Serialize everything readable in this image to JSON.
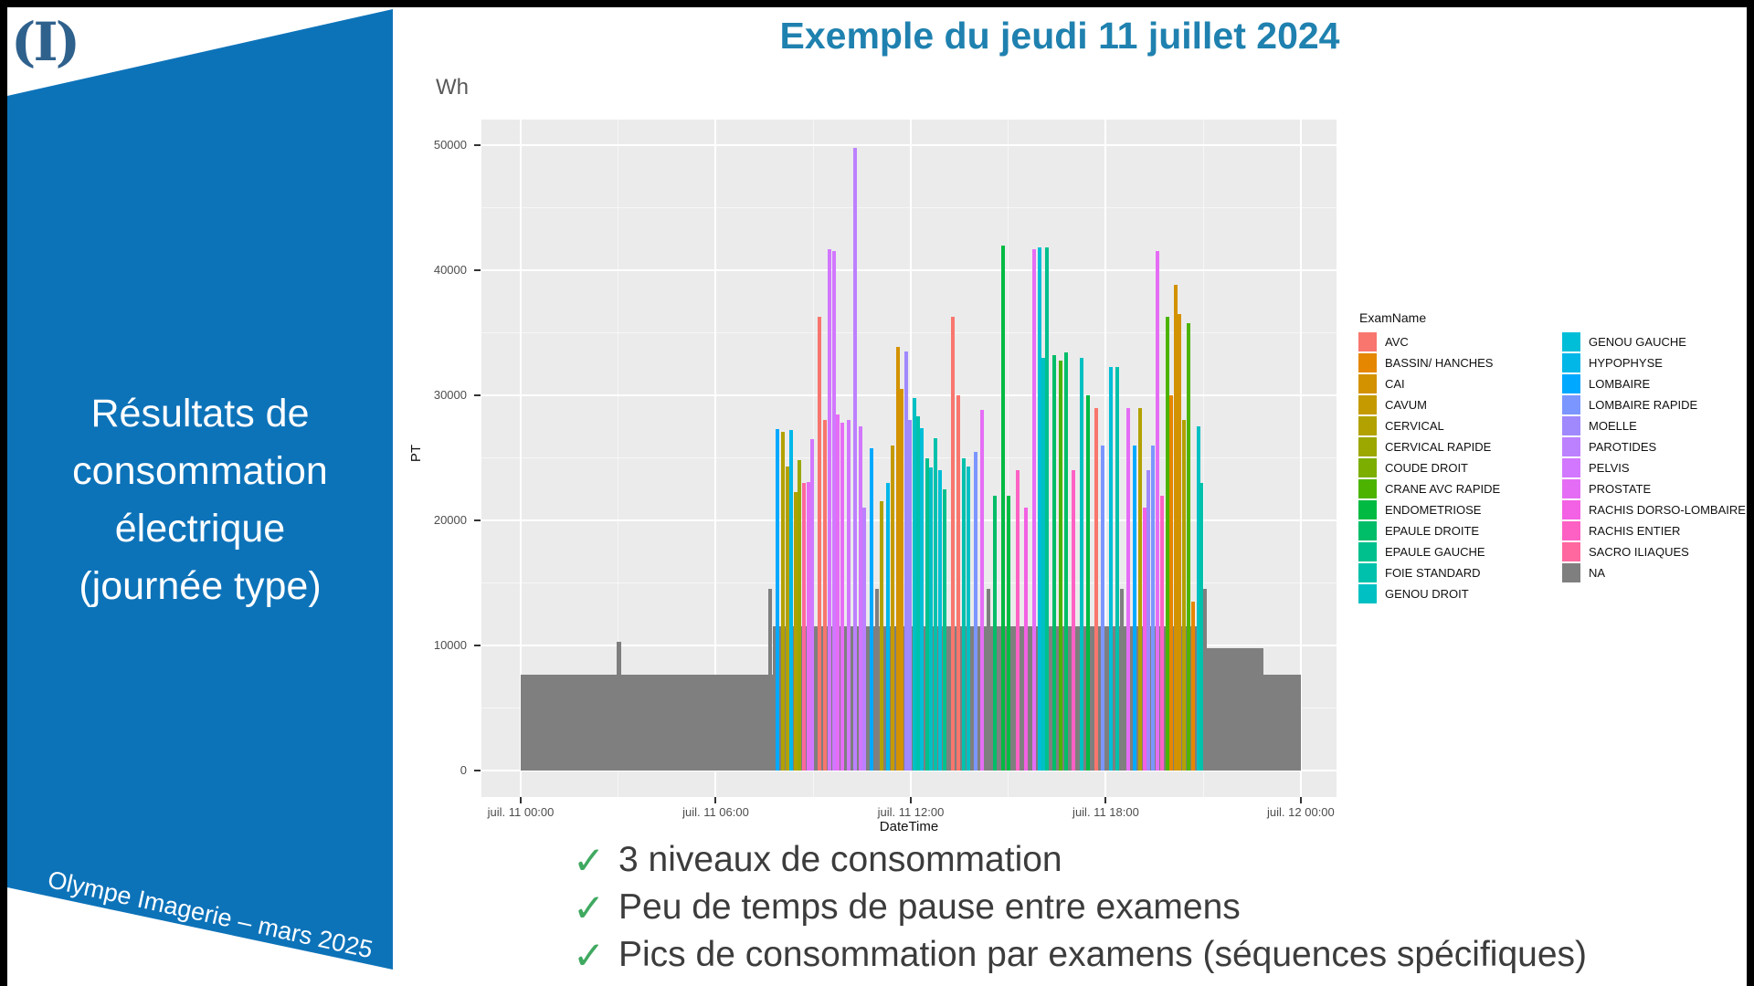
{
  "sidebar": {
    "bg_color": "#0D73B9",
    "logo": "(I)",
    "logo_color": "#2F618D",
    "title_lines": [
      "Résultats de",
      "consommation",
      "électrique",
      "(journée type)"
    ],
    "footer": "Olympe Imagerie – mars 2025"
  },
  "header": {
    "title": "Exemple du jeudi 11 juillet 2024",
    "color": "#1F81AF"
  },
  "bullets": {
    "check": "✓",
    "check_color": "#3FA960",
    "items": [
      "3 niveaux de consommation",
      "Peu de temps de pause entre examens",
      "Pics de consommation par examens (séquences spécifiques)"
    ]
  },
  "chart_data": {
    "type": "bar",
    "unit_label": "Wh",
    "xlabel": "DateTime",
    "ylabel": "PT",
    "panel_bg": "#EBEBEB",
    "ylim": [
      0,
      52000
    ],
    "y_ticks": [
      0,
      10000,
      20000,
      30000,
      40000,
      50000
    ],
    "x_ticks": [
      "juil. 11 00:00",
      "juil. 11 06:00",
      "juil. 11 12:00",
      "juil. 11 18:00",
      "juil. 12 00:00"
    ],
    "x_tick_hours": [
      0,
      6,
      12,
      18,
      24
    ],
    "grid": true,
    "legend_position": "right",
    "legend_title": "ExamName",
    "legend_col1": [
      {
        "label": "AVC",
        "color": "#F8766D"
      },
      {
        "label": "BASSIN/ HANCHES",
        "color": "#E58700"
      },
      {
        "label": "CAI",
        "color": "#D39200"
      },
      {
        "label": "CAVUM",
        "color": "#C49A00"
      },
      {
        "label": "CERVICAL",
        "color": "#B2A100"
      },
      {
        "label": "CERVICAL RAPIDE",
        "color": "#9CA700"
      },
      {
        "label": "COUDE DROIT",
        "color": "#7CAE00"
      },
      {
        "label": "CRANE AVC RAPIDE",
        "color": "#4CB400"
      },
      {
        "label": "ENDOMETRIOSE",
        "color": "#00BA42"
      },
      {
        "label": "EPAULE DROITE",
        "color": "#00BD68"
      },
      {
        "label": "EPAULE GAUCHE",
        "color": "#00C08D"
      },
      {
        "label": "FOIE STANDARD",
        "color": "#00C1AB"
      },
      {
        "label": "GENOU DROIT",
        "color": "#00C0C3"
      }
    ],
    "legend_col2": [
      {
        "label": "GENOU GAUCHE",
        "color": "#00BED8"
      },
      {
        "label": "HYPOPHYSE",
        "color": "#00B7E8"
      },
      {
        "label": "LOMBAIRE",
        "color": "#00A9FF"
      },
      {
        "label": "LOMBAIRE RAPIDE",
        "color": "#7C96FF"
      },
      {
        "label": "MOELLE",
        "color": "#A088FD"
      },
      {
        "label": "PAROTIDES",
        "color": "#BC81FF"
      },
      {
        "label": "PELVIS",
        "color": "#D277FF"
      },
      {
        "label": "PROSTATE",
        "color": "#E56DF5"
      },
      {
        "label": "RACHIS DORSO-LOMBAIRE",
        "color": "#F361E4"
      },
      {
        "label": "RACHIS ENTIER",
        "color": "#FD61C4"
      },
      {
        "label": "SACRO ILIAQUES",
        "color": "#FF689E"
      },
      {
        "label": "NA",
        "color": "#7F7F7F"
      }
    ],
    "baseline_exam": "NA",
    "baseline_segments": [
      {
        "start_h": 0.0,
        "end_h": 7.75,
        "wh": 7700
      },
      {
        "start_h": 2.95,
        "end_h": 3.1,
        "wh": 10300
      },
      {
        "start_h": 7.75,
        "end_h": 21.0,
        "wh": 11500
      },
      {
        "start_h": 21.0,
        "end_h": 22.85,
        "wh": 9800
      },
      {
        "start_h": 22.85,
        "end_h": 24.0,
        "wh": 7700
      }
    ],
    "bars": [
      {
        "h": 7.68,
        "wh": 14500,
        "exam": "NA"
      },
      {
        "h": 7.9,
        "wh": 27300,
        "exam": "LOMBAIRE"
      },
      {
        "h": 8.08,
        "wh": 27100,
        "exam": "CERVICAL"
      },
      {
        "h": 8.2,
        "wh": 24300,
        "exam": "CERVICAL"
      },
      {
        "h": 8.32,
        "wh": 27200,
        "exam": "HYPOPHYSE"
      },
      {
        "h": 8.45,
        "wh": 22300,
        "exam": "CERVICAL"
      },
      {
        "h": 8.57,
        "wh": 24800,
        "exam": "CERVICAL RAPIDE"
      },
      {
        "h": 8.72,
        "wh": 23000,
        "exam": "SACRO ILIAQUES"
      },
      {
        "h": 8.85,
        "wh": 23100,
        "exam": "PROSTATE"
      },
      {
        "h": 8.97,
        "wh": 26500,
        "exam": "PELVIS"
      },
      {
        "h": 9.2,
        "wh": 36300,
        "exam": "AVC"
      },
      {
        "h": 9.35,
        "wh": 28000,
        "exam": "AVC"
      },
      {
        "h": 9.5,
        "wh": 41700,
        "exam": "PELVIS"
      },
      {
        "h": 9.63,
        "wh": 41500,
        "exam": "PELVIS"
      },
      {
        "h": 9.75,
        "wh": 28500,
        "exam": "PROSTATE"
      },
      {
        "h": 9.88,
        "wh": 27800,
        "exam": "PROSTATE"
      },
      {
        "h": 10.1,
        "wh": 28000,
        "exam": "PELVIS"
      },
      {
        "h": 10.3,
        "wh": 49800,
        "exam": "PAROTIDES"
      },
      {
        "h": 10.45,
        "wh": 27500,
        "exam": "PELVIS"
      },
      {
        "h": 10.58,
        "wh": 21000,
        "exam": "PAROTIDES"
      },
      {
        "h": 10.8,
        "wh": 25800,
        "exam": "LOMBAIRE"
      },
      {
        "h": 10.95,
        "wh": 14500,
        "exam": "NA"
      },
      {
        "h": 11.1,
        "wh": 21500,
        "exam": "CERVICAL"
      },
      {
        "h": 11.3,
        "wh": 23000,
        "exam": "HYPOPHYSE"
      },
      {
        "h": 11.45,
        "wh": 26000,
        "exam": "CAVUM"
      },
      {
        "h": 11.6,
        "wh": 33900,
        "exam": "CAI"
      },
      {
        "h": 11.72,
        "wh": 30500,
        "exam": "CAI"
      },
      {
        "h": 11.85,
        "wh": 33500,
        "exam": "MOELLE"
      },
      {
        "h": 11.97,
        "wh": 28000,
        "exam": "MOELLE"
      },
      {
        "h": 12.1,
        "wh": 29800,
        "exam": "GENOU DROIT"
      },
      {
        "h": 12.22,
        "wh": 28300,
        "exam": "FOIE STANDARD"
      },
      {
        "h": 12.35,
        "wh": 27400,
        "exam": "GENOU GAUCHE"
      },
      {
        "h": 12.5,
        "wh": 25000,
        "exam": "EPAULE GAUCHE"
      },
      {
        "h": 12.62,
        "wh": 24200,
        "exam": "GENOU DROIT"
      },
      {
        "h": 12.75,
        "wh": 26600,
        "exam": "FOIE STANDARD"
      },
      {
        "h": 12.9,
        "wh": 24000,
        "exam": "GENOU GAUCHE"
      },
      {
        "h": 13.05,
        "wh": 22500,
        "exam": "EPAULE GAUCHE"
      },
      {
        "h": 13.3,
        "wh": 36300,
        "exam": "AVC"
      },
      {
        "h": 13.45,
        "wh": 30000,
        "exam": "AVC"
      },
      {
        "h": 13.62,
        "wh": 25000,
        "exam": "FOIE STANDARD"
      },
      {
        "h": 13.78,
        "wh": 24300,
        "exam": "GENOU DROIT"
      },
      {
        "h": 14.0,
        "wh": 25500,
        "exam": "LOMBAIRE RAPIDE"
      },
      {
        "h": 14.2,
        "wh": 28800,
        "exam": "PROSTATE"
      },
      {
        "h": 14.4,
        "wh": 14500,
        "exam": "NA"
      },
      {
        "h": 14.6,
        "wh": 22000,
        "exam": "EPAULE DROITE"
      },
      {
        "h": 14.85,
        "wh": 42000,
        "exam": "ENDOMETRIOSE"
      },
      {
        "h": 15.0,
        "wh": 22000,
        "exam": "ENDOMETRIOSE"
      },
      {
        "h": 15.3,
        "wh": 24000,
        "exam": "RACHIS ENTIER"
      },
      {
        "h": 15.55,
        "wh": 21000,
        "exam": "RACHIS DORSO-LOMBAIRE"
      },
      {
        "h": 15.8,
        "wh": 41700,
        "exam": "PROSTATE"
      },
      {
        "h": 15.95,
        "wh": 41800,
        "exam": "GENOU GAUCHE"
      },
      {
        "h": 16.08,
        "wh": 33000,
        "exam": "GENOU DROIT"
      },
      {
        "h": 16.2,
        "wh": 41800,
        "exam": "EPAULE GAUCHE"
      },
      {
        "h": 16.42,
        "wh": 33200,
        "exam": "EPAULE DROITE"
      },
      {
        "h": 16.6,
        "wh": 32800,
        "exam": "CRANE AVC RAPIDE"
      },
      {
        "h": 16.78,
        "wh": 33400,
        "exam": "EPAULE DROITE"
      },
      {
        "h": 17.0,
        "wh": 24000,
        "exam": "RACHIS ENTIER"
      },
      {
        "h": 17.25,
        "wh": 33000,
        "exam": "GENOU DROIT"
      },
      {
        "h": 17.45,
        "wh": 30000,
        "exam": "ENDOMETRIOSE"
      },
      {
        "h": 17.7,
        "wh": 29000,
        "exam": "AVC"
      },
      {
        "h": 17.9,
        "wh": 26000,
        "exam": "LOMBAIRE RAPIDE"
      },
      {
        "h": 18.15,
        "wh": 32300,
        "exam": "GENOU GAUCHE"
      },
      {
        "h": 18.35,
        "wh": 32300,
        "exam": "FOIE STANDARD"
      },
      {
        "h": 18.5,
        "wh": 14500,
        "exam": "NA"
      },
      {
        "h": 18.7,
        "wh": 29000,
        "exam": "PROSTATE"
      },
      {
        "h": 18.9,
        "wh": 26000,
        "exam": "LOMBAIRE"
      },
      {
        "h": 19.05,
        "wh": 29000,
        "exam": "CERVICAL"
      },
      {
        "h": 19.2,
        "wh": 21000,
        "exam": "RACHIS DORSO-LOMBAIRE"
      },
      {
        "h": 19.32,
        "wh": 24000,
        "exam": "MOELLE"
      },
      {
        "h": 19.45,
        "wh": 26000,
        "exam": "LOMBAIRE RAPIDE"
      },
      {
        "h": 19.6,
        "wh": 41500,
        "exam": "PROSTATE"
      },
      {
        "h": 19.72,
        "wh": 22000,
        "exam": "RACHIS ENTIER"
      },
      {
        "h": 19.9,
        "wh": 36300,
        "exam": "CRANE AVC RAPIDE"
      },
      {
        "h": 20.02,
        "wh": 30000,
        "exam": "BASSIN/ HANCHES"
      },
      {
        "h": 20.15,
        "wh": 38800,
        "exam": "CAI"
      },
      {
        "h": 20.27,
        "wh": 36500,
        "exam": "CAI"
      },
      {
        "h": 20.4,
        "wh": 28000,
        "exam": "CERVICAL"
      },
      {
        "h": 20.55,
        "wh": 35800,
        "exam": "CRANE AVC RAPIDE"
      },
      {
        "h": 20.68,
        "wh": 13500,
        "exam": "BASSIN/ HANCHES"
      },
      {
        "h": 20.85,
        "wh": 27500,
        "exam": "GENOU DROIT"
      },
      {
        "h": 20.95,
        "wh": 23000,
        "exam": "FOIE STANDARD"
      },
      {
        "h": 21.05,
        "wh": 14500,
        "exam": "NA"
      }
    ]
  }
}
